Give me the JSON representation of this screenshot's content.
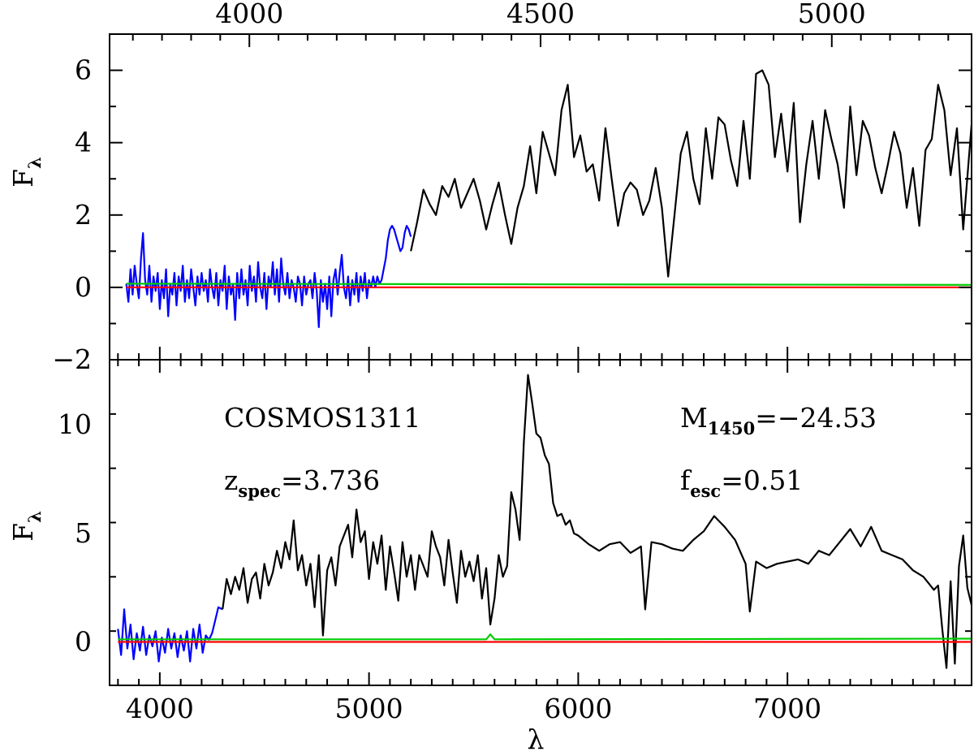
{
  "chart_data": [
    {
      "panel": "top",
      "type": "line",
      "ylabel": "F",
      "ylabel_sub": "λ",
      "xlim": [
        3760,
        7880
      ],
      "ylim": [
        -2,
        7
      ],
      "yticks": [
        -2,
        0,
        2,
        4,
        6
      ],
      "ytick_labels": [
        "−2",
        "0",
        "2",
        "4",
        "6"
      ],
      "top_axis_ticks": [
        4000,
        4500,
        5000
      ],
      "top_axis_tick_labels": [
        "4000",
        "4500",
        "5000"
      ],
      "top_axis_lim": [
        3760,
        5240
      ],
      "series": [
        {
          "color": "#0000ff",
          "x": [
            3840,
            3850,
            3860,
            3870,
            3880,
            3890,
            3900,
            3910,
            3920,
            3930,
            3940,
            3950,
            3960,
            3970,
            3980,
            3990,
            4000,
            4010,
            4020,
            4030,
            4040,
            4050,
            4060,
            4070,
            4080,
            4090,
            4100,
            4110,
            4120,
            4130,
            4140,
            4150,
            4160,
            4170,
            4180,
            4190,
            4200,
            4210,
            4220,
            4230,
            4240,
            4250,
            4260,
            4270,
            4280,
            4290,
            4300,
            4310,
            4320,
            4330,
            4340,
            4350,
            4360,
            4370,
            4380,
            4390,
            4400,
            4410,
            4420,
            4430,
            4440,
            4450,
            4460,
            4470,
            4480,
            4490,
            4500,
            4510,
            4520,
            4530,
            4540,
            4550,
            4560,
            4570,
            4580,
            4590,
            4600,
            4610,
            4620,
            4630,
            4640,
            4650,
            4660,
            4670,
            4680,
            4690,
            4700,
            4710,
            4720,
            4730,
            4740,
            4750,
            4760,
            4770,
            4780,
            4790,
            4800,
            4810,
            4820,
            4830,
            4840,
            4850,
            4860,
            4870,
            4880,
            4890,
            4900,
            4910,
            4920,
            4930,
            4940,
            4950,
            4960,
            4970,
            4980,
            4990,
            5000,
            5010,
            5020,
            5030,
            5040,
            5050,
            5060,
            5070,
            5080,
            5090,
            5100,
            5110,
            5120,
            5130,
            5140,
            5150,
            5160,
            5170,
            5180,
            5190,
            5200
          ],
          "y": [
            0.1,
            -0.4,
            0.5,
            -0.2,
            0.6,
            0.1,
            -0.3,
            0.8,
            1.5,
            0.2,
            -0.2,
            0.6,
            -0.4,
            0.3,
            -0.1,
            0.4,
            -0.6,
            0.2,
            -0.3,
            0.5,
            -0.8,
            0.1,
            -0.2,
            0.4,
            -0.5,
            0.3,
            -0.1,
            0.6,
            -0.4,
            0.2,
            -0.3,
            0.5,
            0.0,
            -0.5,
            0.3,
            -0.2,
            0.4,
            -0.1,
            0.2,
            -0.4,
            0.5,
            0.0,
            -0.3,
            0.4,
            -0.5,
            0.2,
            -0.1,
            0.6,
            -0.6,
            0.3,
            -0.2,
            0.1,
            -0.9,
            0.4,
            -0.3,
            0.5,
            -0.2,
            0.2,
            -0.5,
            0.6,
            -0.1,
            0.3,
            -0.4,
            0.7,
            0.0,
            -0.3,
            0.4,
            -0.6,
            0.3,
            0.0,
            0.7,
            -0.2,
            0.5,
            -0.4,
            0.8,
            0.1,
            -0.2,
            0.4,
            -0.3,
            0.2,
            0.0,
            -0.4,
            0.3,
            0.1,
            -0.5,
            0.3,
            -0.2,
            0.1,
            0.2,
            -0.3,
            0.4,
            -0.1,
            -1.1,
            0.2,
            -0.4,
            0.1,
            -0.6,
            0.3,
            -0.8,
            0.2,
            0.5,
            -0.2,
            0.4,
            0.9,
            0.0,
            -0.3,
            0.3,
            -0.5,
            0.2,
            -0.2,
            0.4,
            -0.4,
            0.3,
            -0.1,
            0.4,
            -0.3,
            0.2,
            0.0,
            0.3,
            0.0,
            0.3,
            0.1,
            0.2,
            0.5,
            0.8,
            1.3,
            1.6,
            1.7,
            1.6,
            1.4,
            1.2,
            1.0,
            1.1,
            1.5,
            1.7,
            1.6,
            1.4
          ]
        },
        {
          "color": "#000000",
          "x": [
            5200,
            5230,
            5260,
            5290,
            5320,
            5350,
            5380,
            5410,
            5440,
            5470,
            5500,
            5530,
            5560,
            5590,
            5620,
            5650,
            5680,
            5710,
            5740,
            5770,
            5800,
            5830,
            5860,
            5890,
            5920,
            5950,
            5980,
            6010,
            6040,
            6070,
            6100,
            6130,
            6160,
            6190,
            6220,
            6250,
            6280,
            6310,
            6340,
            6370,
            6400,
            6430,
            6460,
            6490,
            6520,
            6550,
            6580,
            6610,
            6640,
            6670,
            6700,
            6730,
            6760,
            6790,
            6820,
            6850,
            6880,
            6910,
            6940,
            6970,
            7000,
            7030,
            7060,
            7090,
            7120,
            7150,
            7180,
            7210,
            7240,
            7270,
            7300,
            7330,
            7360,
            7390,
            7420,
            7450,
            7480,
            7510,
            7540,
            7570,
            7600,
            7630,
            7660,
            7690,
            7720,
            7750,
            7780,
            7810,
            7840,
            7880
          ],
          "y": [
            1.0,
            1.8,
            2.7,
            2.3,
            2.0,
            2.8,
            2.5,
            3.0,
            2.2,
            2.6,
            3.0,
            2.4,
            1.6,
            2.3,
            2.9,
            2.0,
            1.2,
            2.2,
            2.8,
            3.9,
            2.6,
            4.3,
            3.7,
            3.1,
            4.9,
            5.6,
            3.6,
            4.2,
            3.2,
            3.4,
            2.4,
            4.4,
            3.0,
            1.7,
            2.6,
            2.9,
            2.7,
            2.0,
            2.4,
            3.3,
            2.2,
            0.3,
            2.0,
            3.7,
            4.3,
            3.0,
            2.3,
            4.4,
            3.0,
            4.7,
            4.5,
            3.5,
            2.8,
            4.6,
            3.0,
            5.9,
            6.0,
            5.6,
            3.6,
            4.8,
            3.2,
            5.1,
            1.8,
            3.4,
            4.6,
            3.0,
            4.9,
            4.1,
            3.4,
            2.2,
            5.0,
            3.1,
            4.6,
            4.2,
            3.3,
            2.6,
            3.4,
            4.3,
            3.7,
            2.2,
            3.3,
            1.7,
            3.8,
            4.1,
            5.6,
            4.9,
            3.1,
            4.4,
            1.6,
            4.5
          ],
          "name": ""
        },
        {
          "color": "#00cc00",
          "x": [
            3840,
            7880
          ],
          "y": [
            0.1,
            0.07
          ]
        },
        {
          "color": "#ff0000",
          "x": [
            3840,
            7880
          ],
          "y": [
            0.0,
            0.0
          ]
        }
      ]
    },
    {
      "panel": "bottom",
      "type": "line",
      "xlabel": "λ",
      "ylabel": "F",
      "ylabel_sub": "λ",
      "xlim": [
        3760,
        7880
      ],
      "ylim": [
        -2,
        13
      ],
      "xticks": [
        4000,
        5000,
        6000,
        7000
      ],
      "xtick_labels": [
        "4000",
        "5000",
        "6000",
        "7000"
      ],
      "yticks": [
        0,
        5,
        10
      ],
      "ytick_labels": [
        "0",
        "5",
        "10"
      ],
      "annotations": {
        "object": "COSMOS1311",
        "z_main": "z",
        "z_sub": "spec",
        "z_value": "=3.736",
        "m_main": "M",
        "m_sub": "1450",
        "m_value": "=−24.53",
        "f_main": "f",
        "f_sub": "esc",
        "f_value": "=0.51"
      },
      "series": [
        {
          "color": "#0000ff",
          "x": [
            3800,
            3815,
            3830,
            3845,
            3860,
            3875,
            3890,
            3905,
            3920,
            3935,
            3950,
            3965,
            3980,
            3995,
            4010,
            4025,
            4040,
            4055,
            4070,
            4085,
            4100,
            4115,
            4130,
            4145,
            4160,
            4175,
            4190,
            4205,
            4220,
            4235,
            4250,
            4265,
            4280,
            4300
          ],
          "y": [
            0.6,
            -0.6,
            1.5,
            -0.3,
            0.8,
            -0.8,
            0.4,
            -0.4,
            0.7,
            -0.6,
            0.3,
            -0.2,
            0.5,
            -0.9,
            0.2,
            -0.5,
            0.6,
            -0.3,
            0.4,
            -0.7,
            0.3,
            -0.4,
            0.5,
            -0.9,
            0.6,
            -0.3,
            0.8,
            -0.5,
            0.3,
            0.1,
            0.4,
            1.0,
            1.6,
            1.5
          ]
        },
        {
          "color": "#000000",
          "x": [
            4300,
            4320,
            4340,
            4360,
            4380,
            4400,
            4420,
            4440,
            4460,
            4480,
            4500,
            4520,
            4540,
            4560,
            4580,
            4600,
            4620,
            4640,
            4660,
            4680,
            4700,
            4720,
            4740,
            4760,
            4780,
            4800,
            4820,
            4840,
            4860,
            4880,
            4900,
            4920,
            4940,
            4960,
            4980,
            5000,
            5020,
            5040,
            5060,
            5080,
            5100,
            5120,
            5140,
            5160,
            5180,
            5200,
            5220,
            5240,
            5260,
            5280,
            5300,
            5320,
            5340,
            5360,
            5380,
            5400,
            5420,
            5440,
            5460,
            5480,
            5500,
            5520,
            5540,
            5560,
            5580,
            5600,
            5620,
            5640,
            5660,
            5680,
            5700,
            5720,
            5740,
            5760,
            5780,
            5800,
            5820,
            5840,
            5860,
            5880,
            5900,
            5920,
            5940,
            5960,
            5980,
            6000,
            6050,
            6100,
            6150,
            6200,
            6250,
            6300,
            6320,
            6350,
            6400,
            6450,
            6500,
            6550,
            6600,
            6650,
            6700,
            6750,
            6800,
            6820,
            6850,
            6900,
            6950,
            7000,
            7050,
            7100,
            7150,
            7200,
            7250,
            7300,
            7350,
            7400,
            7450,
            7500,
            7550,
            7600,
            7650,
            7700,
            7720,
            7740,
            7760,
            7780,
            7800,
            7820,
            7840,
            7860,
            7880
          ],
          "y": [
            1.5,
            2.9,
            2.2,
            3.0,
            2.4,
            3.4,
            1.8,
            2.9,
            3.2,
            2.0,
            3.6,
            2.6,
            3.2,
            4.2,
            3.4,
            4.6,
            3.8,
            5.6,
            3.3,
            4.0,
            2.6,
            3.6,
            1.6,
            4.0,
            0.3,
            3.3,
            3.9,
            2.6,
            4.4,
            4.9,
            5.4,
            3.9,
            6.1,
            4.6,
            5.1,
            2.9,
            4.6,
            3.6,
            4.9,
            2.4,
            4.4,
            3.2,
            1.9,
            4.6,
            3.0,
            4.0,
            2.4,
            4.0,
            3.5,
            3.0,
            5.1,
            4.4,
            3.9,
            2.6,
            4.7,
            3.2,
            1.8,
            4.2,
            3.0,
            3.7,
            2.8,
            4.0,
            2.0,
            3.4,
            0.8,
            2.0,
            4.0,
            3.0,
            3.5,
            6.9,
            6.1,
            4.7,
            9.2,
            12.3,
            11.0,
            9.6,
            9.4,
            8.6,
            8.2,
            6.4,
            5.8,
            5.9,
            5.4,
            5.6,
            5.0,
            4.9,
            4.5,
            4.2,
            4.5,
            4.6,
            4.1,
            4.4,
            1.5,
            4.6,
            4.5,
            4.3,
            4.2,
            4.7,
            5.1,
            5.8,
            5.3,
            4.7,
            3.6,
            1.4,
            3.7,
            3.4,
            3.6,
            3.7,
            3.8,
            3.6,
            4.2,
            4.0,
            4.6,
            5.2,
            4.4,
            5.3,
            4.2,
            4.0,
            3.8,
            3.3,
            3.0,
            2.4,
            2.6,
            0.6,
            -1.2,
            2.8,
            -1.0,
            3.5,
            4.9,
            2.5,
            1.7
          ]
        },
        {
          "color": "#00cc00",
          "x": [
            3800,
            5560,
            5580,
            5600,
            7880
          ],
          "y": [
            0.12,
            0.12,
            0.35,
            0.12,
            0.15
          ]
        },
        {
          "color": "#ff0000",
          "x": [
            3800,
            7880
          ],
          "y": [
            0.0,
            0.0
          ]
        }
      ]
    }
  ]
}
